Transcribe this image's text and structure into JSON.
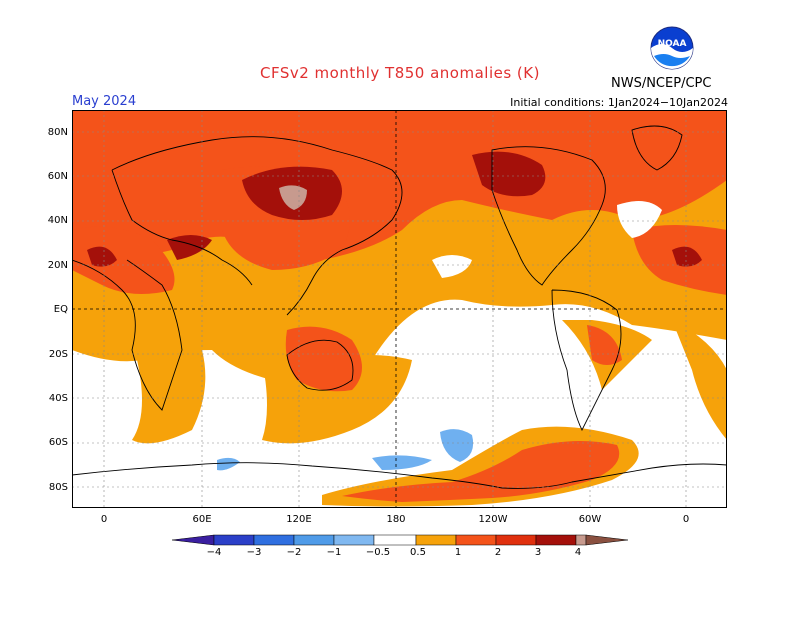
{
  "title": "CFSv2 monthly T850 anomalies (K)",
  "month": "May 2024",
  "initial_conditions": "Initial conditions: 1Jan2024−10Jan2024",
  "organization": "NWS/NCEP/CPC",
  "logo": {
    "icon": "noaa-logo-icon",
    "text": "NOAA"
  },
  "lat_labels": [
    "80N",
    "60N",
    "40N",
    "20N",
    "EQ",
    "20S",
    "40S",
    "60S",
    "80S"
  ],
  "lon_labels": [
    "0",
    "60E",
    "120E",
    "180",
    "120W",
    "60W",
    "0"
  ],
  "colorbar": {
    "labels": [
      "−4",
      "−3",
      "−2",
      "−1",
      "−0.5",
      "0.5",
      "1",
      "2",
      "3",
      "4"
    ],
    "colors": [
      "#3a1fa0",
      "#2b3fc8",
      "#2f6fe0",
      "#4f9be8",
      "#80b8f0",
      "#ffffff",
      "#f6a20a",
      "#f4531a",
      "#e0300e",
      "#a4100a",
      "#c79a8e",
      "#8a5040"
    ]
  },
  "colors": {
    "orange": "#f6a20a",
    "red_orange": "#f4531a",
    "dark_red": "#a4100a",
    "pink_brown": "#c79a8e",
    "light_blue": "#6fb0f0"
  }
}
